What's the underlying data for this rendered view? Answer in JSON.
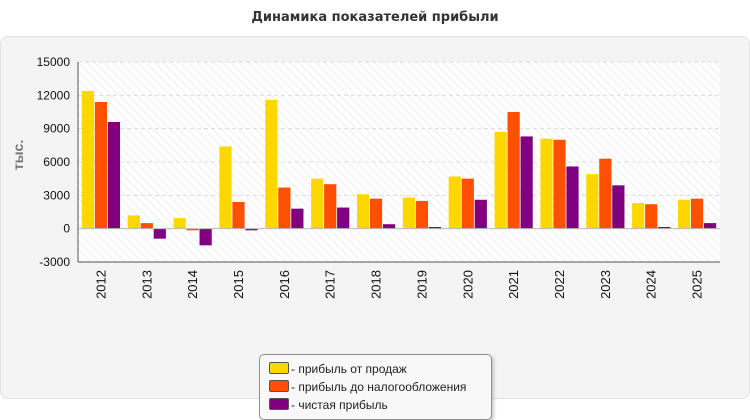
{
  "chart_data": {
    "type": "bar",
    "title": "Динамика показателей прибыли",
    "ylabel": "тыс.",
    "xlabel": "",
    "ylim": [
      -3000,
      15000
    ],
    "yticks": [
      15000,
      12000,
      9000,
      6000,
      3000,
      0,
      -3000
    ],
    "grid": true,
    "legend_position": "bottom-center",
    "categories": [
      "2012",
      "2013",
      "2014",
      "2015",
      "2016",
      "2017",
      "2018",
      "2019",
      "2020",
      "2021",
      "2022",
      "2023",
      "2024",
      "2025"
    ],
    "series": [
      {
        "name": "- прибыль от продаж",
        "color": "#ffd700",
        "values": [
          12400,
          1200,
          950,
          7400,
          11600,
          4500,
          3100,
          2800,
          4700,
          8700,
          8100,
          4900,
          2300,
          2600
        ]
      },
      {
        "name": "- прибыль до налогообложения",
        "color": "#ff4f00",
        "values": [
          11400,
          500,
          -150,
          2400,
          3700,
          4000,
          2700,
          2500,
          4500,
          10500,
          8000,
          6300,
          2200,
          2700
        ]
      },
      {
        "name": "- чистая прибыль",
        "color": "#800080",
        "values": [
          9600,
          -900,
          -1500,
          -150,
          1800,
          1900,
          400,
          150,
          2600,
          8300,
          5600,
          3900,
          150,
          500
        ]
      }
    ]
  }
}
